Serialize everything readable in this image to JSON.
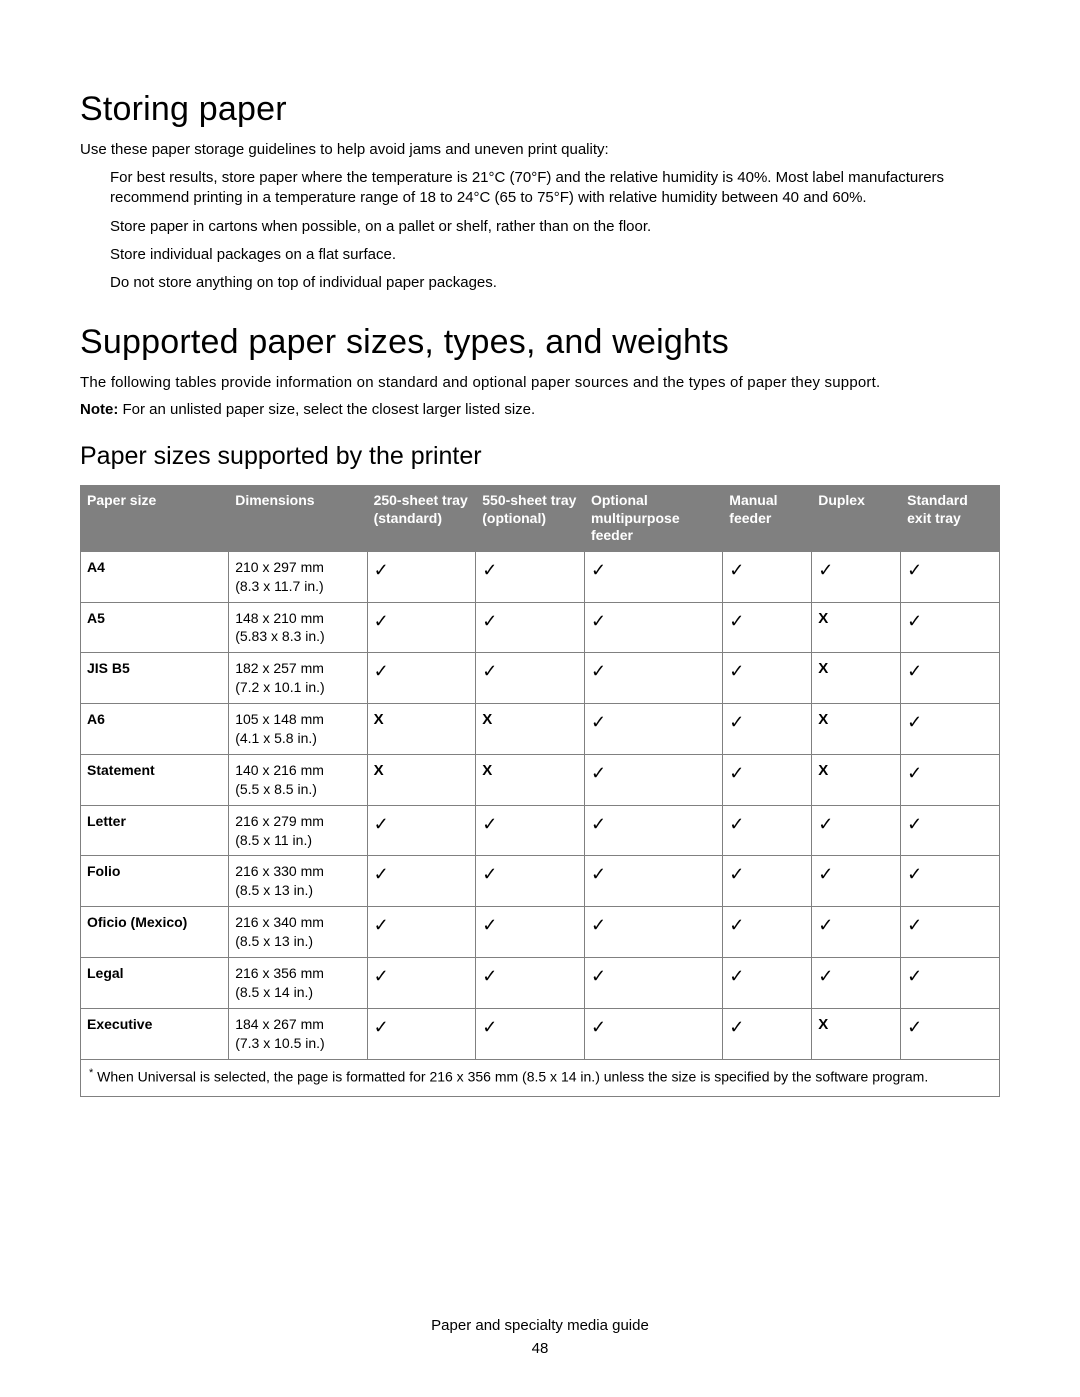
{
  "section1": {
    "heading": "Storing paper",
    "intro": "Use these paper storage guidelines to help avoid jams and uneven print quality:",
    "bullets": [
      "For best results, store paper where the temperature is 21°C (70°F) and the relative humidity is 40%. Most label manufacturers recommend printing in a temperature range of 18 to 24°C (65 to 75°F) with relative humidity between 40 and 60%.",
      "Store paper in cartons when possible, on a pallet or shelf, rather than on the floor.",
      "Store individual packages on a flat surface.",
      "Do not store anything on top of individual paper packages."
    ]
  },
  "section2": {
    "heading": "Supported paper sizes, types, and weights",
    "intro": "The following tables provide information on standard and optional paper sources and the types of paper they support.",
    "note_label": "Note:",
    "note_text": " For an unlisted paper size, select the closest larger listed size.",
    "subheading": "Paper sizes supported by the printer"
  },
  "table": {
    "header_bg": "#808080",
    "header_fg": "#ffffff",
    "border_color": "#808080",
    "check_glyph": "✓",
    "x_glyph": "X",
    "columns": [
      "Paper size",
      "Dimensions",
      "250-sheet tray (standard)",
      "550-sheet tray (optional)",
      "Optional multipurpose feeder",
      "Manual feeder",
      "Duplex",
      "Standard exit tray"
    ],
    "col_widths_pct": [
      15,
      14,
      11,
      11,
      14,
      9,
      9,
      10
    ],
    "rows": [
      {
        "size": "A4",
        "dim_mm": "210 x 297 mm",
        "dim_in": "(8.3 x 11.7 in.)",
        "marks": [
          "✓",
          "✓",
          "✓",
          "✓",
          "✓",
          "✓"
        ]
      },
      {
        "size": "A5",
        "dim_mm": "148 x 210 mm",
        "dim_in": "(5.83 x 8.3 in.)",
        "marks": [
          "✓",
          "✓",
          "✓",
          "✓",
          "X",
          "✓"
        ]
      },
      {
        "size": "JIS B5",
        "dim_mm": "182 x 257 mm",
        "dim_in": "(7.2 x 10.1 in.)",
        "marks": [
          "✓",
          "✓",
          "✓",
          "✓",
          "X",
          "✓"
        ]
      },
      {
        "size": "A6",
        "dim_mm": "105 x 148 mm",
        "dim_in": "(4.1 x 5.8 in.)",
        "marks": [
          "X",
          "X",
          "✓",
          "✓",
          "X",
          "✓"
        ]
      },
      {
        "size": "Statement",
        "dim_mm": "140 x 216 mm",
        "dim_in": "(5.5 x 8.5 in.)",
        "marks": [
          "X",
          "X",
          "✓",
          "✓",
          "X",
          "✓"
        ]
      },
      {
        "size": "Letter",
        "dim_mm": "216 x 279 mm",
        "dim_in": "(8.5 x 11 in.)",
        "marks": [
          "✓",
          "✓",
          "✓",
          "✓",
          "✓",
          "✓"
        ]
      },
      {
        "size": "Folio",
        "dim_mm": "216 x 330 mm",
        "dim_in": "(8.5 x 13 in.)",
        "marks": [
          "✓",
          "✓",
          "✓",
          "✓",
          "✓",
          "✓"
        ]
      },
      {
        "size": "Oficio (Mexico)",
        "dim_mm": "216 x 340 mm",
        "dim_in": "(8.5 x 13 in.)",
        "marks": [
          "✓",
          "✓",
          "✓",
          "✓",
          "✓",
          "✓"
        ]
      },
      {
        "size": "Legal",
        "dim_mm": "216 x 356 mm",
        "dim_in": "(8.5 x 14 in.)",
        "marks": [
          "✓",
          "✓",
          "✓",
          "✓",
          "✓",
          "✓"
        ]
      },
      {
        "size": "Executive",
        "dim_mm": "184 x 267 mm",
        "dim_in": "(7.3 x 10.5 in.)",
        "marks": [
          "✓",
          "✓",
          "✓",
          "✓",
          "X",
          "✓"
        ]
      }
    ],
    "footnote_marker": "*",
    "footnote": " When Universal is selected, the page is formatted for 216 x 356 mm (8.5 x 14 in.) unless the size is specified by the software program."
  },
  "footer": {
    "guide_title": "Paper and specialty media guide",
    "page_number": "48"
  }
}
